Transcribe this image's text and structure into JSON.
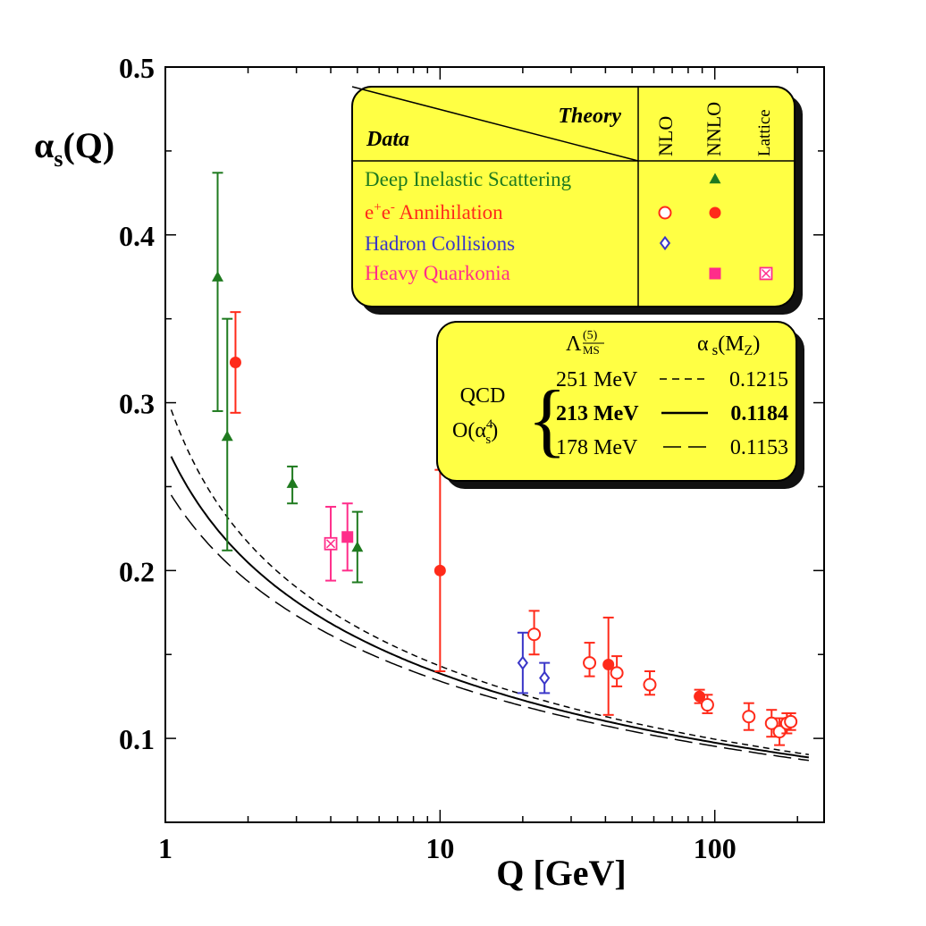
{
  "chart_data": {
    "type": "scatter",
    "xlabel": "Q [GeV]",
    "ylabel": {
      "main": "α",
      "sub": "s",
      "tail": "(Q)"
    },
    "x_scale": "log",
    "xlim": [
      1,
      250
    ],
    "ylim": [
      0.05,
      0.5
    ],
    "x_ticks": [
      "1",
      "10",
      "100"
    ],
    "y_ticks": [
      "0.1",
      "0.2",
      "0.3",
      "0.4",
      "0.5"
    ],
    "legend": {
      "header_theory": "Theory",
      "header_data": "Data",
      "columns": [
        "NLO",
        "NNLO",
        "Lattice"
      ],
      "rows": [
        {
          "label": "Deep Inelastic Scattering",
          "color": "#1f7a1f",
          "markers": [
            null,
            "filled-triangle",
            null
          ]
        },
        {
          "label": "e+e- Annihilation",
          "label_main": "e",
          "label_sup1": "+",
          "label_mid": "e",
          "label_sup2": "-",
          "label_tail": " Annihilation",
          "color": "#ff2a1a",
          "markers": [
            "open-circle",
            "filled-circle",
            null
          ]
        },
        {
          "label": "Hadron Collisions",
          "color": "#3a36c8",
          "markers": [
            "open-diamond",
            null,
            null
          ]
        },
        {
          "label": "Heavy Quarkonia",
          "color": "#ff2d8a",
          "markers": [
            null,
            "filled-square",
            "crossed-square"
          ]
        }
      ]
    },
    "qcd_box": {
      "header_lambda": "Λ",
      "header_lambda_sup": "(5)",
      "header_lambda_sub": "MS",
      "header_alpha": "α",
      "header_alpha_sub": "s",
      "header_alpha_tail": "(M",
      "header_alpha_tail_sub": "Z",
      "header_alpha_close": ")",
      "left_line1": "QCD",
      "left_line2": "O(α",
      "left_line2_sup": "4",
      "left_line2_sub": "s",
      "left_line2_close": ")",
      "rows": [
        {
          "lambda": "251 MeV",
          "alpha": "0.1215",
          "style": "dashed",
          "bold": false
        },
        {
          "lambda": "213 MeV",
          "alpha": "0.1184",
          "style": "solid",
          "bold": true
        },
        {
          "lambda": "178 MeV",
          "alpha": "0.1153",
          "style": "longdash",
          "bold": false
        }
      ]
    },
    "curves": [
      {
        "lambda_gev": 0.251,
        "style": "dashed"
      },
      {
        "lambda_gev": 0.213,
        "style": "solid"
      },
      {
        "lambda_gev": 0.178,
        "style": "longdash"
      }
    ],
    "points": [
      {
        "x": 1.55,
        "y": 0.375,
        "err_lo": 0.08,
        "err_hi": 0.062,
        "marker": "filled-triangle",
        "color": "#1f7a1f"
      },
      {
        "x": 1.68,
        "y": 0.28,
        "err_lo": 0.068,
        "err_hi": 0.07,
        "marker": "filled-triangle",
        "color": "#1f7a1f"
      },
      {
        "x": 2.9,
        "y": 0.252,
        "err_lo": 0.012,
        "err_hi": 0.01,
        "marker": "filled-triangle",
        "color": "#1f7a1f"
      },
      {
        "x": 5.0,
        "y": 0.214,
        "err_lo": 0.021,
        "err_hi": 0.021,
        "marker": "filled-triangle",
        "color": "#1f7a1f"
      },
      {
        "x": 1.8,
        "y": 0.324,
        "err_lo": 0.03,
        "err_hi": 0.03,
        "marker": "filled-circle",
        "color": "#ff2a1a"
      },
      {
        "x": 10.0,
        "y": 0.2,
        "err_lo": 0.06,
        "err_hi": 0.06,
        "marker": "filled-circle",
        "color": "#ff2a1a"
      },
      {
        "x": 22.0,
        "y": 0.162,
        "err_lo": 0.012,
        "err_hi": 0.014,
        "marker": "open-circle",
        "color": "#ff2a1a"
      },
      {
        "x": 35.0,
        "y": 0.145,
        "err_lo": 0.008,
        "err_hi": 0.012,
        "marker": "open-circle",
        "color": "#ff2a1a"
      },
      {
        "x": 41.0,
        "y": 0.144,
        "err_lo": 0.03,
        "err_hi": 0.028,
        "marker": "filled-circle",
        "color": "#ff2a1a"
      },
      {
        "x": 44.0,
        "y": 0.139,
        "err_lo": 0.008,
        "err_hi": 0.01,
        "marker": "open-circle",
        "color": "#ff2a1a"
      },
      {
        "x": 58.0,
        "y": 0.132,
        "err_lo": 0.006,
        "err_hi": 0.008,
        "marker": "open-circle",
        "color": "#ff2a1a"
      },
      {
        "x": 88.0,
        "y": 0.125,
        "err_lo": 0.004,
        "err_hi": 0.004,
        "marker": "filled-circle",
        "color": "#ff2a1a"
      },
      {
        "x": 94.0,
        "y": 0.12,
        "err_lo": 0.005,
        "err_hi": 0.006,
        "marker": "open-circle",
        "color": "#ff2a1a"
      },
      {
        "x": 133.0,
        "y": 0.113,
        "err_lo": 0.008,
        "err_hi": 0.008,
        "marker": "open-circle",
        "color": "#ff2a1a"
      },
      {
        "x": 161.0,
        "y": 0.109,
        "err_lo": 0.008,
        "err_hi": 0.008,
        "marker": "open-circle",
        "color": "#ff2a1a"
      },
      {
        "x": 172.0,
        "y": 0.104,
        "err_lo": 0.008,
        "err_hi": 0.008,
        "marker": "open-circle",
        "color": "#ff2a1a"
      },
      {
        "x": 183.0,
        "y": 0.109,
        "err_lo": 0.006,
        "err_hi": 0.006,
        "marker": "open-circle",
        "color": "#ff2a1a"
      },
      {
        "x": 189.0,
        "y": 0.11,
        "err_lo": 0.005,
        "err_hi": 0.005,
        "marker": "open-circle",
        "color": "#ff2a1a"
      },
      {
        "x": 20.0,
        "y": 0.145,
        "err_lo": 0.018,
        "err_hi": 0.018,
        "marker": "open-diamond",
        "color": "#3a36c8"
      },
      {
        "x": 24.0,
        "y": 0.136,
        "err_lo": 0.009,
        "err_hi": 0.009,
        "marker": "open-diamond",
        "color": "#3a36c8"
      },
      {
        "x": 4.6,
        "y": 0.22,
        "err_lo": 0.02,
        "err_hi": 0.02,
        "marker": "filled-square",
        "color": "#ff2d8a"
      },
      {
        "x": 4.0,
        "y": 0.216,
        "err_lo": 0.022,
        "err_hi": 0.022,
        "marker": "crossed-square",
        "color": "#ff2d8a"
      }
    ]
  }
}
